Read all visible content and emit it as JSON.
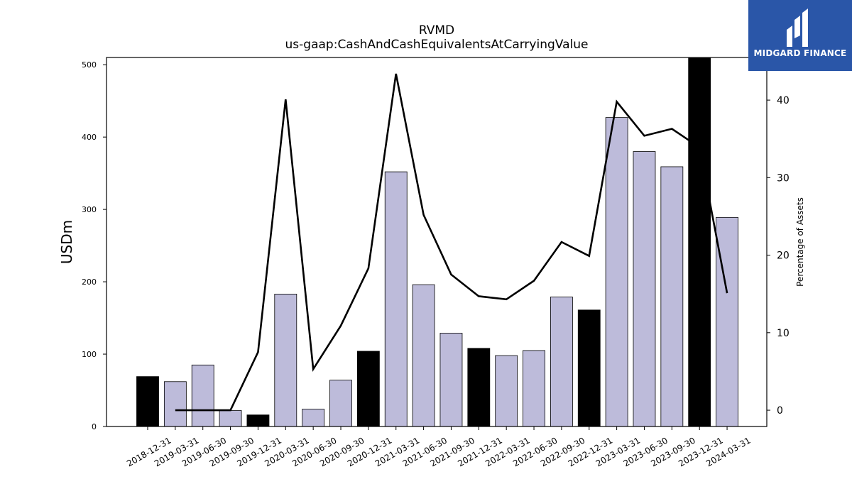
{
  "chart_data": {
    "type": "bar",
    "title": "RVMD",
    "subtitle": "us-gaap:CashAndCashEquivalentsAtCarryingValue",
    "ylabel": "USDm",
    "y2label": "Percentage of Assets",
    "categories": [
      "2018-12-31",
      "2019-03-31",
      "2019-06-30",
      "2019-09-30",
      "2019-12-31",
      "2020-03-31",
      "2020-06-30",
      "2020-09-30",
      "2020-12-31",
      "2021-03-31",
      "2021-06-30",
      "2021-09-30",
      "2021-12-31",
      "2022-03-31",
      "2022-06-30",
      "2022-09-30",
      "2022-12-31",
      "2023-03-31",
      "2023-06-30",
      "2023-09-30",
      "2023-12-31",
      "2024-03-31"
    ],
    "series": [
      {
        "type": "bar",
        "axis": "left",
        "values": [
          69,
          62,
          85,
          22,
          16,
          183,
          24,
          64,
          104,
          352,
          196,
          129,
          108,
          98,
          105,
          179,
          161,
          427,
          380,
          359,
          509,
          289
        ]
      },
      {
        "type": "line",
        "axis": "right",
        "values": [
          null,
          0,
          0,
          0,
          7.5,
          40.1,
          5.3,
          10.9,
          18.3,
          43.4,
          25.2,
          17.5,
          14.7,
          14.3,
          16.7,
          21.7,
          19.9,
          39.8,
          35.4,
          36.3,
          33.9,
          15.1
        ]
      }
    ],
    "highlight_color": "#000000",
    "bar_color": "#bdbbda",
    "line_color": "#000000",
    "ylim": [
      0,
      510
    ],
    "yticks": [
      0,
      100,
      200,
      300,
      400,
      500
    ],
    "y2lim": [
      -2.1,
      45.5
    ],
    "y2ticks": [
      0,
      10,
      20,
      30,
      40
    ],
    "grid": false,
    "legend": "none"
  },
  "logo": {
    "text": "MIDGARD FINANCE",
    "color": "#2a56a8"
  }
}
